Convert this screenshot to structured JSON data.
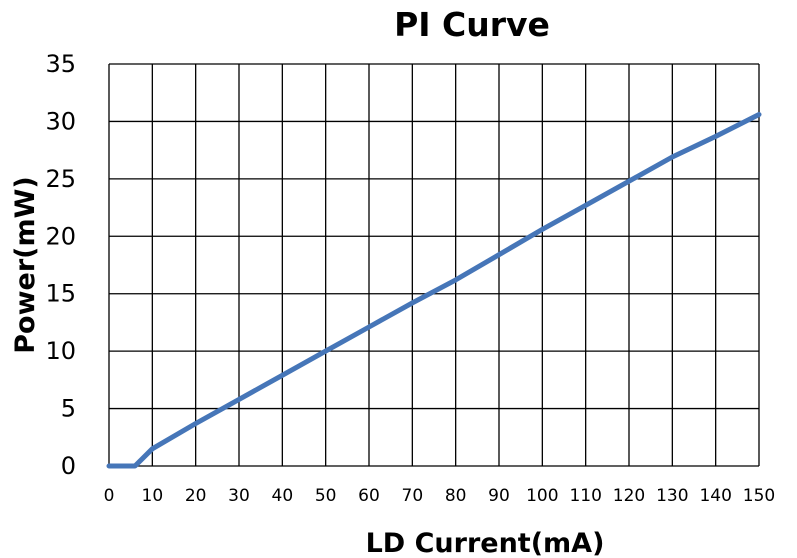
{
  "chart_data": {
    "type": "line",
    "title": "PI Curve",
    "xlabel": "LD Current(mA)",
    "ylabel": "Power(mW)",
    "xlim": [
      0,
      150
    ],
    "ylim": [
      0,
      35
    ],
    "xticks": [
      "0",
      "10",
      "20",
      "30",
      "40",
      "50",
      "60",
      "70",
      "80",
      "90",
      "100",
      "110",
      "120",
      "130",
      "140",
      "150"
    ],
    "yticks": [
      "0",
      "5",
      "10",
      "15",
      "20",
      "25",
      "30",
      "35"
    ],
    "grid": true,
    "series": [
      {
        "color": "#4676b8",
        "x": [
          0,
          6,
          10,
          20,
          30,
          40,
          50,
          60,
          70,
          80,
          90,
          100,
          110,
          120,
          130,
          140,
          150
        ],
        "y": [
          0,
          0,
          1.5,
          3.7,
          5.8,
          7.9,
          10.0,
          12.1,
          14.2,
          16.2,
          18.4,
          20.6,
          22.7,
          24.8,
          26.9,
          28.7,
          30.6
        ]
      }
    ]
  }
}
